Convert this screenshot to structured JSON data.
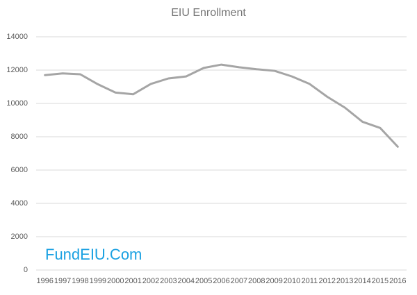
{
  "chart_data": {
    "type": "line",
    "title": "EIU Enrollment",
    "watermark": "FundEIU.Com",
    "categories": [
      "1996",
      "1997",
      "1998",
      "1999",
      "2000",
      "2001",
      "2002",
      "2003",
      "2004",
      "2005",
      "2006",
      "2007",
      "2008",
      "2009",
      "2010",
      "2011",
      "2012",
      "2013",
      "2014",
      "2015",
      "2016"
    ],
    "values": [
      11700,
      11800,
      11750,
      11150,
      10650,
      10550,
      11170,
      11500,
      11620,
      12130,
      12330,
      12170,
      12050,
      11960,
      11620,
      11170,
      10400,
      9750,
      8900,
      8530,
      7400
    ],
    "color": "#a5a5a5",
    "ylim": [
      0,
      14000
    ],
    "yticks": [
      0,
      2000,
      4000,
      6000,
      8000,
      10000,
      12000,
      14000
    ],
    "grid": true
  }
}
